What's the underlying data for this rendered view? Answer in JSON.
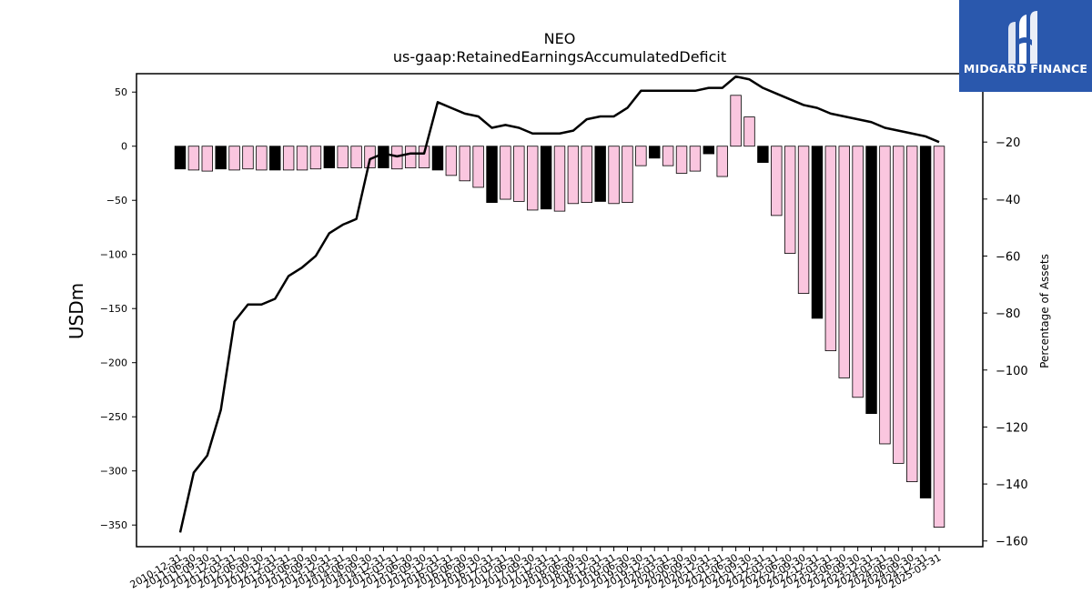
{
  "chart_data": {
    "type": "bar",
    "title": "NEO",
    "subtitle": "us-gaap:RetainedEarningsAccumulatedDeficit",
    "ylabel": "USDm",
    "y2label": "Percentage of Assets",
    "ylim": [
      -370,
      67
    ],
    "y2lim": [
      -162,
      4
    ],
    "yticks": [
      50,
      0,
      -50,
      -100,
      -150,
      -200,
      -250,
      -300,
      -350
    ],
    "y2ticks": [
      0,
      -20,
      -40,
      -60,
      -80,
      -100,
      -120,
      -140,
      -160
    ],
    "categories": [
      "2010-12-31",
      "2011-06-30",
      "2011-09-30",
      "2011-12-31",
      "2012-03-31",
      "2012-06-30",
      "2012-09-30",
      "2012-12-31",
      "2013-03-31",
      "2013-06-30",
      "2013-09-30",
      "2013-12-31",
      "2014-03-31",
      "2014-06-30",
      "2014-09-30",
      "2014-12-31",
      "2015-03-31",
      "2015-06-30",
      "2015-09-30",
      "2015-12-31",
      "2016-03-31",
      "2016-06-30",
      "2016-09-30",
      "2016-12-31",
      "2017-03-31",
      "2017-06-30",
      "2017-09-30",
      "2017-12-31",
      "2018-03-31",
      "2018-06-30",
      "2018-09-30",
      "2018-12-31",
      "2019-03-31",
      "2019-06-30",
      "2019-09-30",
      "2019-12-31",
      "2020-03-31",
      "2020-06-30",
      "2020-09-30",
      "2020-12-31",
      "2021-03-31",
      "2021-06-30",
      "2021-09-30",
      "2021-12-31",
      "2022-03-31",
      "2022-06-30",
      "2022-09-30",
      "2022-12-31",
      "2023-03-31",
      "2023-06-30",
      "2023-09-30",
      "2023-12-31",
      "2024-03-31",
      "2024-06-30",
      "2024-09-30",
      "2024-12-31",
      "2025-03-31"
    ],
    "series": [
      {
        "kind": "bar",
        "axis": "left",
        "values": [
          -21,
          -22,
          -23,
          -21,
          -22,
          -21,
          -22,
          -22,
          -22,
          -22,
          -21,
          -20,
          -20,
          -20,
          -20,
          -20,
          -21,
          -20,
          -20,
          -22,
          -27,
          -32,
          -38,
          -52,
          -49,
          -51,
          -59,
          -58,
          -60,
          -53,
          -52,
          -51,
          -53,
          -52,
          -18,
          -11,
          -18,
          -25,
          -23,
          -7,
          -28,
          47,
          27,
          -15,
          -64,
          -99,
          -136,
          -159,
          -189,
          -214,
          -232,
          -247,
          -275,
          -293,
          -310,
          -325,
          -352
        ],
        "dark": [
          true,
          false,
          false,
          true,
          false,
          false,
          false,
          true,
          false,
          false,
          false,
          true,
          false,
          false,
          false,
          true,
          false,
          false,
          false,
          true,
          false,
          false,
          false,
          true,
          false,
          false,
          false,
          true,
          false,
          false,
          false,
          true,
          false,
          false,
          false,
          true,
          false,
          false,
          false,
          true,
          false,
          false,
          false,
          true,
          false,
          false,
          false,
          true,
          false,
          false,
          false,
          true,
          false,
          false,
          false,
          true,
          false
        ]
      },
      {
        "kind": "line",
        "axis": "right",
        "values": [
          -157,
          -136,
          -130,
          -114,
          -83,
          -77,
          -77,
          -75,
          -67,
          -64,
          -60,
          -52,
          -49,
          -47,
          -26,
          -24,
          -25,
          -24,
          -24,
          -6,
          -8,
          -10,
          -11,
          -15,
          -14,
          -15,
          -17,
          -17,
          -17,
          -16,
          -12,
          -11,
          -11,
          -8,
          -2,
          -2,
          -2,
          -2,
          -2,
          -1,
          -1,
          3,
          2,
          -1,
          -3,
          -5,
          -7,
          -8,
          -10,
          -11,
          -12,
          -13,
          -15,
          -16,
          -17,
          -18,
          -20
        ]
      }
    ],
    "colors": {
      "bar_dark": "#000000",
      "bar_light": "#fac6df",
      "line": "#000000"
    },
    "grid": false
  },
  "logo": {
    "text": "MIDGARD FINANCE",
    "background": "#2a58ad"
  }
}
